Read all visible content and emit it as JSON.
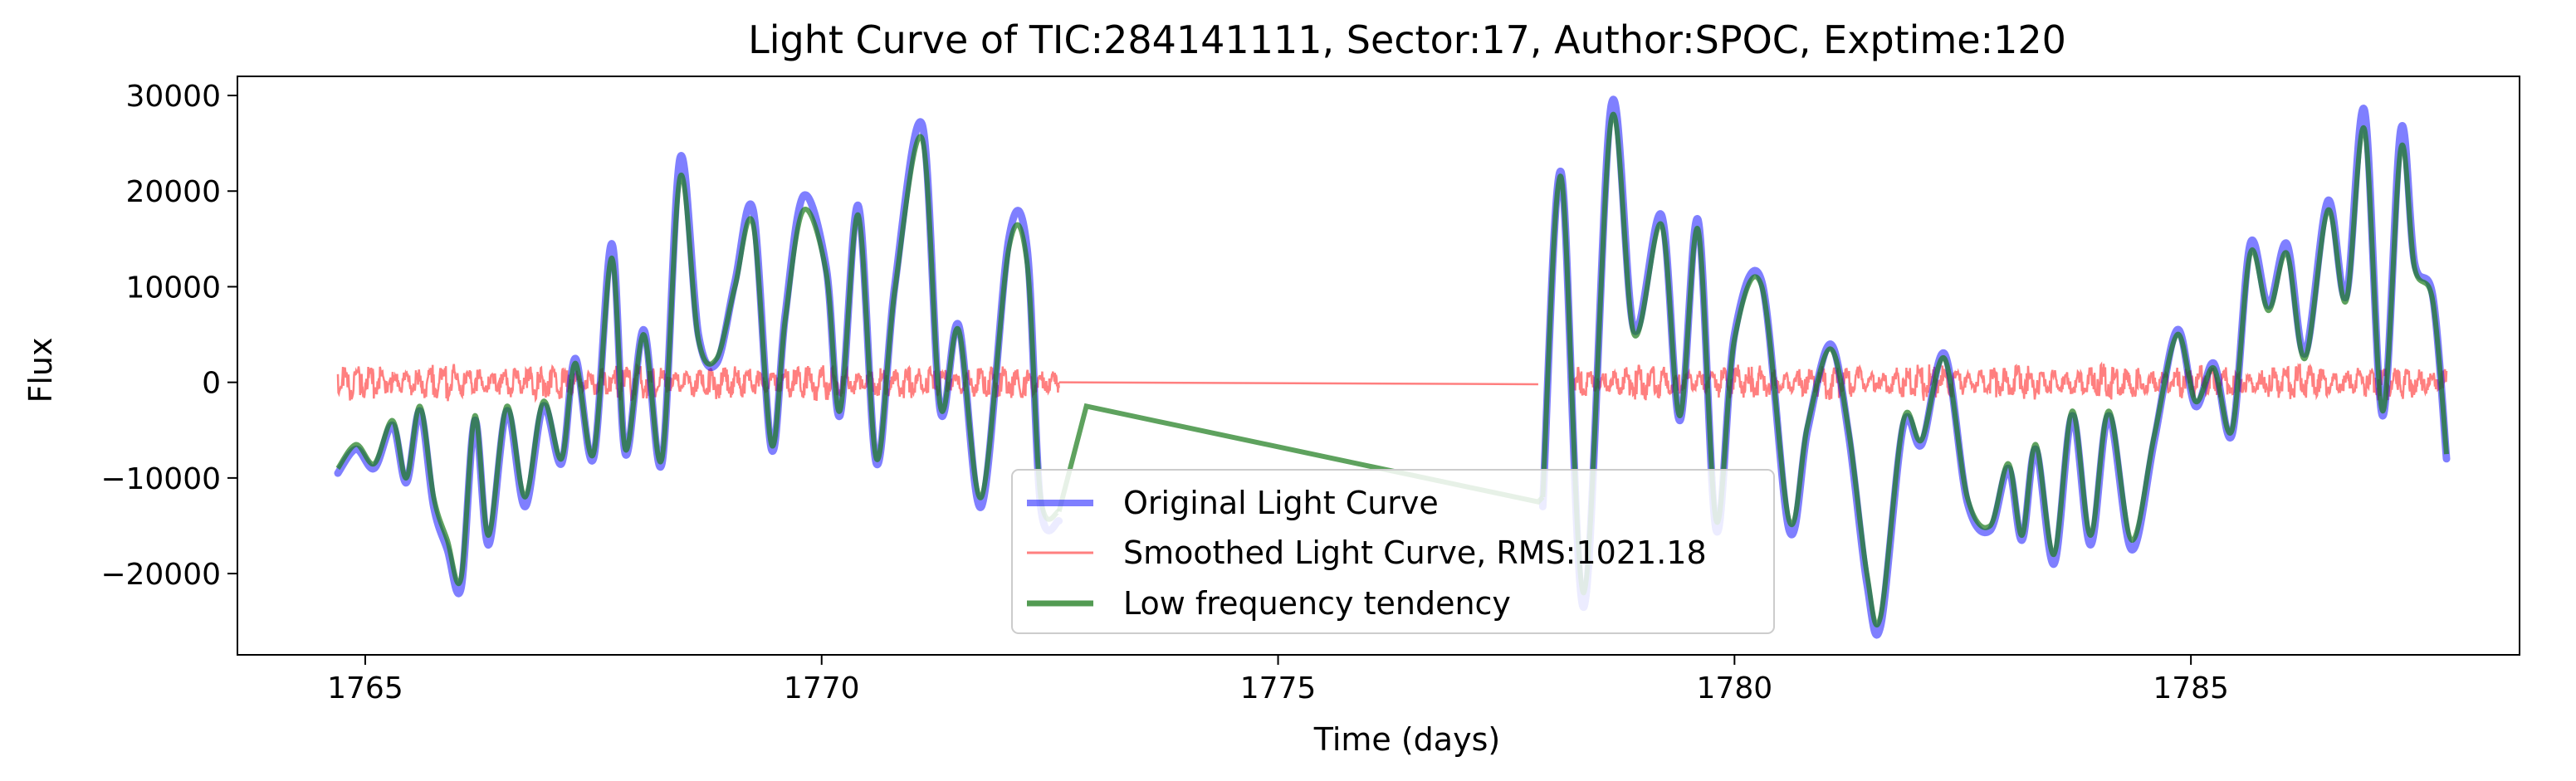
{
  "chart_data": {
    "type": "line",
    "title": "Light Curve of TIC:284141111, Sector:17, Author:SPOC, Exptime:120",
    "xlabel": "Time (days)",
    "ylabel": "Flux",
    "xlim": [
      1763.6,
      1788.6
    ],
    "ylim": [
      -28500,
      32000
    ],
    "xticks": [
      1765,
      1770,
      1775,
      1780,
      1785
    ],
    "xtick_labels": [
      "1765",
      "1770",
      "1775",
      "1780",
      "1785"
    ],
    "yticks": [
      -20000,
      -10000,
      0,
      10000,
      20000,
      30000
    ],
    "ytick_labels": [
      "−20000",
      "−10000",
      "0",
      "10000",
      "20000",
      "30000"
    ],
    "grid": false,
    "legend_position": "lower-center",
    "gap": [
      1772.6,
      1777.85
    ],
    "series": [
      {
        "name": "Original Light Curve",
        "color": "#0000ff",
        "alpha": 0.5,
        "x": [
          1764.7,
          1764.9,
          1765.1,
          1765.3,
          1765.45,
          1765.6,
          1765.75,
          1765.9,
          1766.05,
          1766.2,
          1766.35,
          1766.55,
          1766.75,
          1766.95,
          1767.15,
          1767.3,
          1767.5,
          1767.7,
          1767.85,
          1768.05,
          1768.25,
          1768.45,
          1768.65,
          1768.85,
          1769.05,
          1769.25,
          1769.45,
          1769.6,
          1769.8,
          1770.05,
          1770.2,
          1770.4,
          1770.6,
          1770.8,
          1771.1,
          1771.3,
          1771.5,
          1771.75,
          1772.05,
          1772.25,
          1772.4,
          1772.6,
          1777.9,
          1778.1,
          1778.35,
          1778.65,
          1778.9,
          1779.2,
          1779.4,
          1779.6,
          1779.8,
          1780.0,
          1780.3,
          1780.6,
          1780.8,
          1781.05,
          1781.25,
          1781.45,
          1781.6,
          1781.85,
          1782.05,
          1782.3,
          1782.55,
          1782.8,
          1783.0,
          1783.15,
          1783.3,
          1783.5,
          1783.7,
          1783.9,
          1784.1,
          1784.35,
          1784.6,
          1784.85,
          1785.05,
          1785.25,
          1785.45,
          1785.65,
          1785.85,
          1786.05,
          1786.25,
          1786.5,
          1786.7,
          1786.9,
          1787.1,
          1787.3,
          1787.45,
          1787.65,
          1787.8
        ],
        "y": [
          -9500,
          -7000,
          -9000,
          -4500,
          -10500,
          -3000,
          -13000,
          -17500,
          -21500,
          -4000,
          -17000,
          -3000,
          -13000,
          -2500,
          -8500,
          2500,
          -8000,
          14500,
          -7500,
          5500,
          -8500,
          23500,
          5000,
          2000,
          10500,
          18000,
          -7000,
          7000,
          19500,
          12000,
          -3500,
          18500,
          -8500,
          10000,
          27000,
          -3000,
          6000,
          -13000,
          15000,
          14000,
          -13000,
          -14500,
          -13000,
          22000,
          -23500,
          29000,
          5500,
          17500,
          -4000,
          17000,
          -15500,
          5000,
          10500,
          -15500,
          -5000,
          4000,
          -5500,
          -21000,
          -25500,
          -4500,
          -6500,
          3000,
          -12500,
          -15500,
          -9000,
          -16500,
          -7000,
          -19000,
          -3500,
          -17000,
          -3500,
          -17500,
          -6000,
          5500,
          -2500,
          2000,
          -5500,
          14500,
          8000,
          14500,
          3000,
          19000,
          9000,
          28500,
          -3500,
          26500,
          12500,
          9000,
          -8000
        ]
      },
      {
        "name": "Smoothed Light Curve, RMS:1021.18",
        "color": "#ff0000",
        "alpha": 0.5,
        "rms": 1021.18,
        "x_range": [
          1764.7,
          1787.8
        ],
        "amplitude": 1800,
        "linear_connection": [
          [
            1772.6,
            0
          ],
          [
            1777.85,
            -200
          ]
        ]
      },
      {
        "name": "Low frequency tendency",
        "color": "#1a7a1a",
        "alpha": 0.7,
        "x": [
          1764.7,
          1764.9,
          1765.1,
          1765.3,
          1765.45,
          1765.6,
          1765.75,
          1765.9,
          1766.05,
          1766.2,
          1766.35,
          1766.55,
          1766.75,
          1766.95,
          1767.15,
          1767.3,
          1767.5,
          1767.7,
          1767.85,
          1768.05,
          1768.25,
          1768.45,
          1768.65,
          1768.85,
          1769.05,
          1769.25,
          1769.45,
          1769.6,
          1769.8,
          1770.05,
          1770.2,
          1770.4,
          1770.6,
          1770.8,
          1771.1,
          1771.3,
          1771.5,
          1771.75,
          1772.05,
          1772.25,
          1772.4,
          1772.6,
          1772.9,
          1777.85,
          1777.9,
          1778.1,
          1778.35,
          1778.65,
          1778.9,
          1779.2,
          1779.4,
          1779.6,
          1779.8,
          1780.0,
          1780.3,
          1780.6,
          1780.8,
          1781.05,
          1781.25,
          1781.45,
          1781.6,
          1781.85,
          1782.05,
          1782.3,
          1782.55,
          1782.8,
          1783.0,
          1783.15,
          1783.3,
          1783.5,
          1783.7,
          1783.9,
          1784.1,
          1784.35,
          1784.6,
          1784.85,
          1785.05,
          1785.25,
          1785.45,
          1785.65,
          1785.85,
          1786.05,
          1786.25,
          1786.5,
          1786.7,
          1786.9,
          1787.1,
          1787.3,
          1787.45,
          1787.65,
          1787.8
        ],
        "y": [
          -9000,
          -6500,
          -8500,
          -4000,
          -10000,
          -2500,
          -12000,
          -16500,
          -20500,
          -3500,
          -16000,
          -2500,
          -12000,
          -2000,
          -8000,
          2000,
          -7500,
          13000,
          -7000,
          5000,
          -8000,
          21500,
          4500,
          2500,
          10000,
          16500,
          -6500,
          6500,
          18000,
          11500,
          -3000,
          17500,
          -8000,
          9500,
          25500,
          -2500,
          5500,
          -12000,
          14000,
          12500,
          -12000,
          -13500,
          -2500,
          -12500,
          -12000,
          21500,
          -22000,
          27500,
          5000,
          16500,
          -3500,
          16000,
          -14500,
          4500,
          10000,
          -14500,
          -4500,
          3500,
          -5000,
          -20000,
          -24500,
          -4000,
          -6000,
          2500,
          -12000,
          -15000,
          -8500,
          -16000,
          -6500,
          -18000,
          -3000,
          -16000,
          -3000,
          -16500,
          -5500,
          5000,
          -2000,
          1500,
          -5000,
          13500,
          7500,
          13500,
          2500,
          18000,
          8500,
          26500,
          -3000,
          24500,
          12000,
          8500,
          -7500
        ]
      }
    ]
  }
}
